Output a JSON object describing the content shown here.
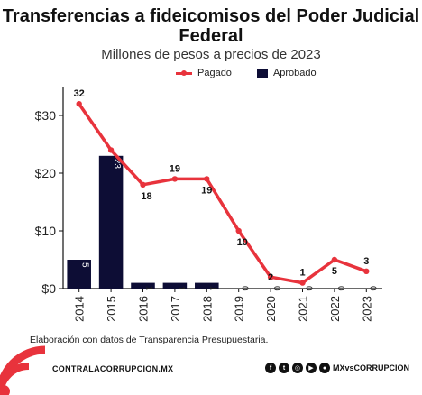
{
  "chart_data": {
    "type": "bar",
    "title": "Transferencias a fideicomisos del Poder Judicial Federal",
    "subtitle": "Millones de pesos a precios de 2023",
    "categories": [
      "2014",
      "2015",
      "2016",
      "2017",
      "2018",
      "2019",
      "2020",
      "2021",
      "2022",
      "2023"
    ],
    "series": [
      {
        "name": "Pagado",
        "kind": "line",
        "color": "#e8333c",
        "values": [
          32,
          24,
          18,
          19,
          19,
          10,
          2,
          1,
          5,
          3
        ]
      },
      {
        "name": "Aprobado",
        "kind": "bar",
        "color": "#0d0d35",
        "values": [
          5,
          23,
          1,
          1,
          1,
          0,
          0,
          0,
          0,
          0
        ]
      }
    ],
    "line_labels": [
      "32",
      "",
      "18",
      "19",
      "19",
      "10",
      "2",
      "1",
      "5",
      "3"
    ],
    "bar_labels": [
      "5",
      "23",
      "1",
      "1",
      "1",
      "0",
      "0",
      "0",
      "0",
      "0"
    ],
    "y_ticks": [
      0,
      10,
      20,
      30
    ],
    "y_tick_labels": [
      "$0",
      "$10",
      "$20",
      "$30"
    ],
    "ylim": [
      0,
      35
    ],
    "legend": "top"
  },
  "note": "Elaboración con datos de Transparencia Presupuestaria.",
  "footer": {
    "site": "CONTRALACORRUPCION.MX",
    "handle": "MXvsCORRUPCION",
    "social_icons": [
      "facebook-icon",
      "twitter-icon",
      "instagram-icon",
      "youtube-icon",
      "website-icon"
    ]
  }
}
